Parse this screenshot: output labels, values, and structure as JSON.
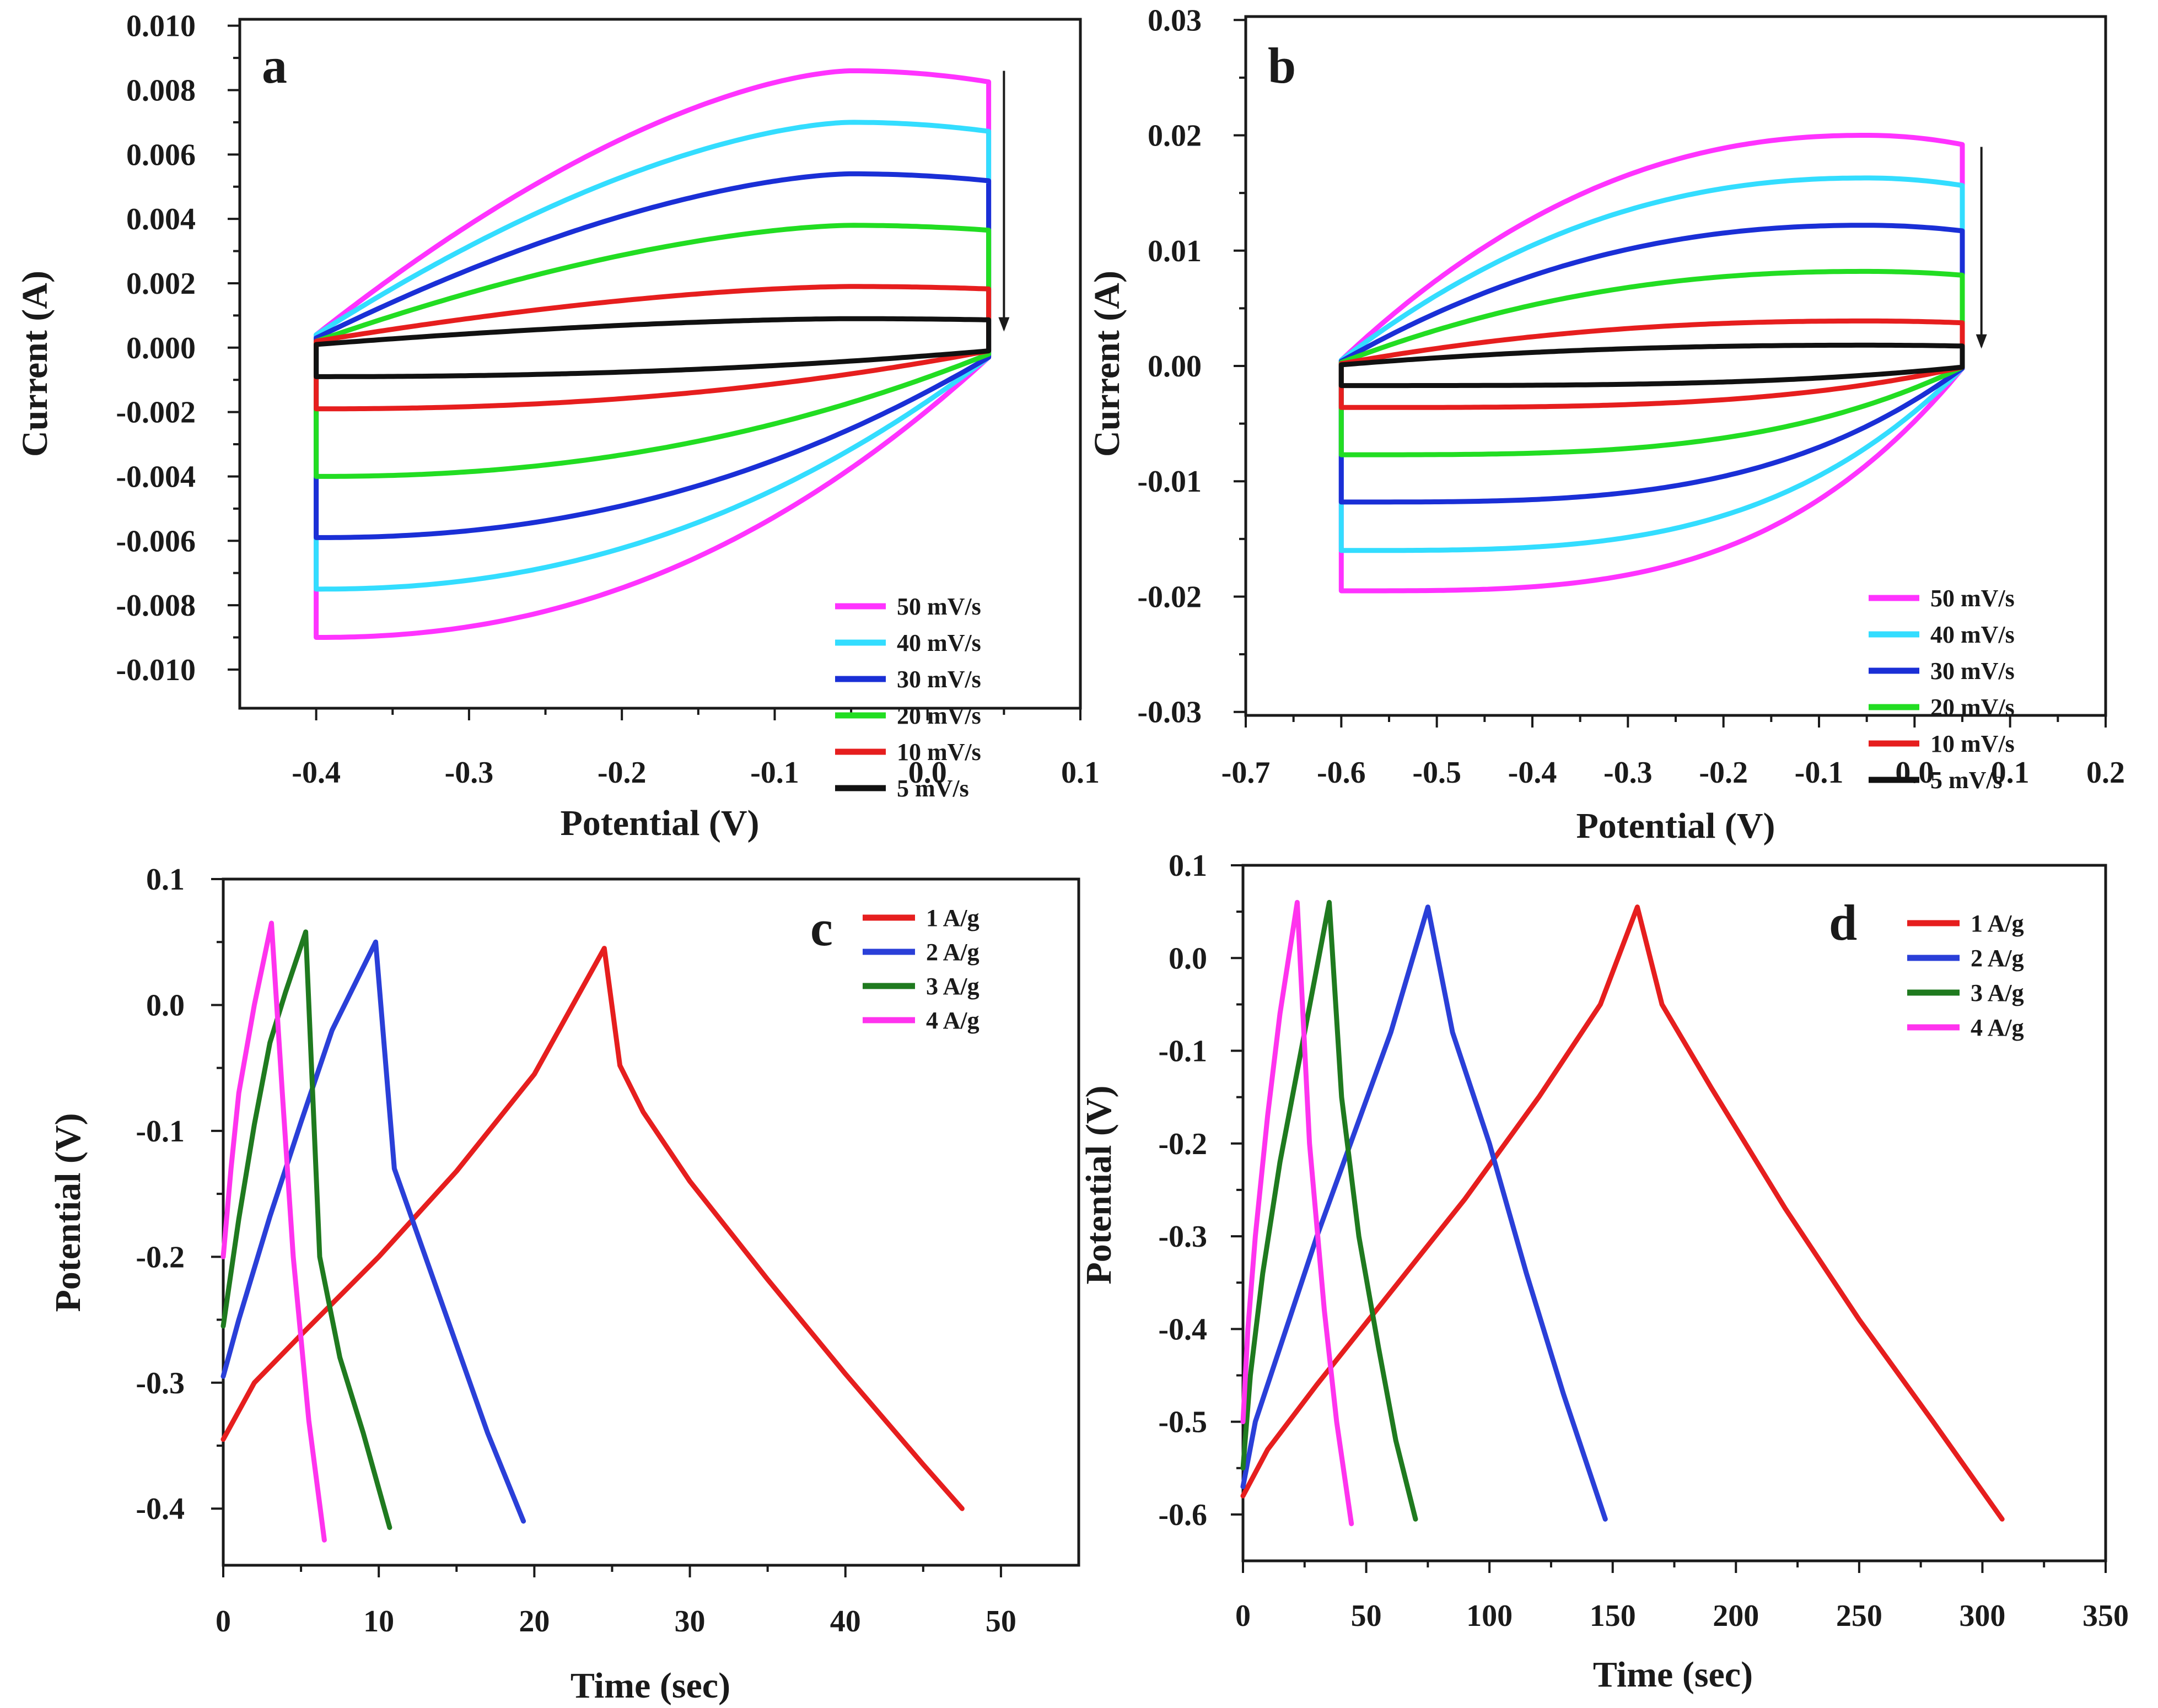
{
  "colors": {
    "magenta": "#ff33ff",
    "cyan": "#33ddff",
    "blue": "#1a2fd6",
    "green": "#22dd22",
    "red": "#e61e1e",
    "black": "#111111",
    "dark_green": "#1f7a1f",
    "gcd_blue": "#2a3fd8",
    "gcd_magenta": "#ff33ee"
  },
  "chart_data": [
    {
      "id": "a",
      "panel_label": "a",
      "type": "line",
      "subtype": "cyclic-voltammetry",
      "xlabel": "Potential (V)",
      "ylabel": "Current (A)",
      "xlim": [
        -0.45,
        0.1
      ],
      "ylim": [
        -0.0112,
        0.0102
      ],
      "xticks": [
        -0.4,
        -0.3,
        -0.2,
        -0.1,
        0.0,
        0.1
      ],
      "xtick_labels": [
        "-0.4",
        "-0.3",
        "-0.2",
        "-0.1",
        "0.0",
        "0.1"
      ],
      "yticks": [
        0.01,
        0.008,
        0.006,
        0.004,
        0.002,
        0.0,
        -0.002,
        -0.004,
        -0.006,
        -0.008,
        -0.01
      ],
      "ytick_labels": [
        "0.010",
        "0.008",
        "0.006",
        "0.004",
        "0.002",
        "0.000",
        "-0.002",
        "-0.004",
        "-0.006",
        "-0.008",
        "-0.010"
      ],
      "cv": {
        "xmin": -0.4,
        "xmax": 0.04,
        "xpeak": -0.05,
        "shape_top": 1.6,
        "shape_bottom": 2.2
      },
      "arrow": {
        "x": 0.05,
        "y_from": 0.0086,
        "y_to": 0.0005
      },
      "legend_position": "bottom-right",
      "series": [
        {
          "name": "50 mV/s",
          "color_key": "magenta",
          "top": 0.0086,
          "start_top": 0.0004,
          "bottom": -0.009,
          "end_bottom": -0.0003
        },
        {
          "name": "40 mV/s",
          "color_key": "cyan",
          "top": 0.007,
          "start_top": 0.0004,
          "bottom": -0.0075,
          "end_bottom": -0.0003
        },
        {
          "name": "30 mV/s",
          "color_key": "blue",
          "top": 0.0054,
          "start_top": 0.0003,
          "bottom": -0.0059,
          "end_bottom": -0.0003
        },
        {
          "name": "20 mV/s",
          "color_key": "green",
          "top": 0.0038,
          "start_top": 0.0002,
          "bottom": -0.004,
          "end_bottom": -0.0002
        },
        {
          "name": "10 mV/s",
          "color_key": "red",
          "top": 0.0019,
          "start_top": 0.0002,
          "bottom": -0.0019,
          "end_bottom": -0.0001
        },
        {
          "name": "5 mV/s",
          "color_key": "black",
          "top": 0.0009,
          "start_top": 0.0001,
          "bottom": -0.0009,
          "end_bottom": -0.0001
        }
      ]
    },
    {
      "id": "b",
      "panel_label": "b",
      "type": "line",
      "subtype": "cyclic-voltammetry",
      "xlabel": "Potential (V)",
      "ylabel": "Current (A)",
      "xlim": [
        -0.7,
        0.2
      ],
      "ylim": [
        -0.0303,
        0.0303
      ],
      "xticks": [
        -0.7,
        -0.6,
        -0.5,
        -0.4,
        -0.3,
        -0.2,
        -0.1,
        0.0,
        0.1,
        0.2
      ],
      "xtick_labels": [
        "-0.7",
        "-0.6",
        "-0.5",
        "-0.4",
        "-0.3",
        "-0.2",
        "-0.1",
        "0.0",
        "0.1",
        "0.2"
      ],
      "yticks": [
        0.03,
        0.02,
        0.01,
        0.0,
        -0.01,
        -0.02,
        -0.03
      ],
      "ytick_labels": [
        "0.03",
        "0.02",
        "0.01",
        "0.00",
        "-0.01",
        "-0.02",
        "-0.03"
      ],
      "cv": {
        "xmin": -0.6,
        "xmax": 0.05,
        "xpeak": -0.05,
        "shape_top": 2.2,
        "shape_bottom": 3.4
      },
      "arrow": {
        "x": 0.07,
        "y_from": 0.019,
        "y_to": 0.0015
      },
      "legend_position": "bottom-right",
      "series": [
        {
          "name": "50 mV/s",
          "color_key": "magenta",
          "top": 0.02,
          "start_top": 0.0005,
          "bottom": -0.0195,
          "end_bottom": -0.0002
        },
        {
          "name": "40 mV/s",
          "color_key": "cyan",
          "top": 0.0163,
          "start_top": 0.0005,
          "bottom": -0.016,
          "end_bottom": -0.0002
        },
        {
          "name": "30 mV/s",
          "color_key": "blue",
          "top": 0.0122,
          "start_top": 0.0004,
          "bottom": -0.0118,
          "end_bottom": -0.0002
        },
        {
          "name": "20 mV/s",
          "color_key": "green",
          "top": 0.0082,
          "start_top": 0.0003,
          "bottom": -0.0077,
          "end_bottom": -0.0001
        },
        {
          "name": "10 mV/s",
          "color_key": "red",
          "top": 0.0039,
          "start_top": 0.0002,
          "bottom": -0.0036,
          "end_bottom": -0.0001
        },
        {
          "name": "5 mV/s",
          "color_key": "black",
          "top": 0.0018,
          "start_top": 0.0001,
          "bottom": -0.0017,
          "end_bottom": -0.0001
        }
      ]
    },
    {
      "id": "c",
      "panel_label": "c",
      "type": "line",
      "subtype": "galvanostatic-charge-discharge",
      "xlabel": "Time (sec)",
      "ylabel": "Potential (V)",
      "xlim": [
        0,
        55
      ],
      "ylim": [
        -0.445,
        0.1
      ],
      "xticks": [
        0,
        10,
        20,
        30,
        40,
        50
      ],
      "xtick_labels": [
        "0",
        "10",
        "20",
        "30",
        "40",
        "50"
      ],
      "yticks": [
        0.1,
        0.0,
        -0.1,
        -0.2,
        -0.3,
        -0.4
      ],
      "ytick_labels": [
        "0.1",
        "0.0",
        "-0.1",
        "-0.2",
        "-0.3",
        "-0.4"
      ],
      "legend_position": "top-right",
      "series": [
        {
          "name": "1 A/g",
          "color_key": "red",
          "x": [
            0,
            2,
            5,
            10,
            15,
            20,
            24.5,
            25.5,
            27,
            30,
            35,
            40,
            45,
            47.5
          ],
          "y": [
            -0.345,
            -0.3,
            -0.262,
            -0.2,
            -0.132,
            -0.055,
            0.045,
            -0.048,
            -0.085,
            -0.14,
            -0.218,
            -0.293,
            -0.365,
            -0.4
          ]
        },
        {
          "name": "2 A/g",
          "color_key": "gcd_blue",
          "x": [
            0,
            1,
            3,
            5,
            7,
            9.8,
            11,
            13,
            15,
            17,
            19.3
          ],
          "y": [
            -0.295,
            -0.25,
            -0.168,
            -0.093,
            -0.02,
            0.05,
            -0.13,
            -0.2,
            -0.27,
            -0.34,
            -0.41
          ]
        },
        {
          "name": "3 A/g",
          "color_key": "dark_green",
          "x": [
            0,
            1,
            2,
            3,
            4,
            5.3,
            6.2,
            7.5,
            9,
            10.7
          ],
          "y": [
            -0.255,
            -0.17,
            -0.095,
            -0.03,
            0.01,
            0.058,
            -0.2,
            -0.28,
            -0.34,
            -0.415
          ]
        },
        {
          "name": "4 A/g",
          "color_key": "gcd_magenta",
          "x": [
            0,
            0.5,
            1,
            2,
            3.1,
            3.8,
            4.5,
            5.5,
            6.5
          ],
          "y": [
            -0.2,
            -0.13,
            -0.07,
            0.0,
            0.065,
            -0.07,
            -0.2,
            -0.33,
            -0.425
          ]
        }
      ]
    },
    {
      "id": "d",
      "panel_label": "d",
      "type": "line",
      "subtype": "galvanostatic-charge-discharge",
      "xlabel": "Time (sec)",
      "ylabel": "Potential (V)",
      "xlim": [
        0,
        350
      ],
      "ylim": [
        -0.65,
        0.1
      ],
      "xticks": [
        0,
        50,
        100,
        150,
        200,
        250,
        300,
        350
      ],
      "xtick_labels": [
        "0",
        "50",
        "100",
        "150",
        "200",
        "250",
        "300",
        "350"
      ],
      "yticks": [
        0.1,
        0.0,
        -0.1,
        -0.2,
        -0.3,
        -0.4,
        -0.5,
        -0.6
      ],
      "ytick_labels": [
        "0.1",
        "0.0",
        "-0.1",
        "-0.2",
        "-0.3",
        "-0.4",
        "-0.5",
        "-0.6"
      ],
      "legend_position": "top-right",
      "series": [
        {
          "name": "1 A/g",
          "color_key": "red",
          "x": [
            0,
            10,
            30,
            60,
            90,
            120,
            145,
            160,
            170,
            190,
            220,
            250,
            280,
            308
          ],
          "y": [
            -0.58,
            -0.53,
            -0.46,
            -0.36,
            -0.26,
            -0.15,
            -0.05,
            0.055,
            -0.05,
            -0.14,
            -0.27,
            -0.39,
            -0.5,
            -0.605
          ]
        },
        {
          "name": "2 A/g",
          "color_key": "gcd_blue",
          "x": [
            0,
            5,
            15,
            30,
            45,
            60,
            75,
            85,
            100,
            115,
            130,
            147
          ],
          "y": [
            -0.57,
            -0.5,
            -0.42,
            -0.3,
            -0.19,
            -0.08,
            0.055,
            -0.08,
            -0.2,
            -0.34,
            -0.47,
            -0.605
          ]
        },
        {
          "name": "3 A/g",
          "color_key": "dark_green",
          "x": [
            0,
            3,
            8,
            15,
            25,
            35,
            40,
            47,
            55,
            62,
            70
          ],
          "y": [
            -0.55,
            -0.45,
            -0.34,
            -0.22,
            -0.08,
            0.06,
            -0.15,
            -0.3,
            -0.42,
            -0.52,
            -0.605
          ]
        },
        {
          "name": "4 A/g",
          "color_key": "gcd_magenta",
          "x": [
            0,
            2,
            5,
            10,
            15,
            22,
            27,
            33,
            38,
            44
          ],
          "y": [
            -0.5,
            -0.4,
            -0.3,
            -0.17,
            -0.06,
            0.06,
            -0.2,
            -0.38,
            -0.5,
            -0.61
          ]
        }
      ]
    }
  ]
}
